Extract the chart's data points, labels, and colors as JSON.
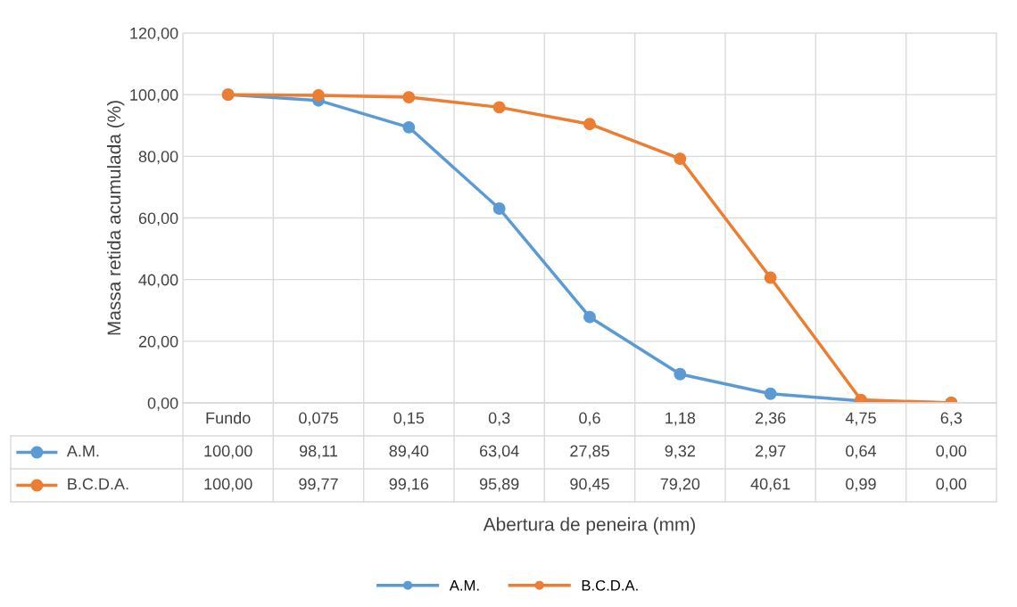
{
  "chart_data": {
    "type": "line",
    "xlabel": "Abertura de peneira (mm)",
    "ylabel": "Massa retida acumulada (%)",
    "categories": [
      "Fundo",
      "0,075",
      "0,15",
      "0,3",
      "0,6",
      "1,18",
      "2,36",
      "4,75",
      "6,3"
    ],
    "series": [
      {
        "name": "A.M.",
        "color": "#5b9bd5",
        "values": [
          100.0,
          98.11,
          89.4,
          63.04,
          27.85,
          9.32,
          2.97,
          0.64,
          0.0
        ],
        "value_labels": [
          "100,00",
          "98,11",
          "89,40",
          "63,04",
          "27,85",
          "9,32",
          "2,97",
          "0,64",
          "0,00"
        ]
      },
      {
        "name": "B.C.D.A.",
        "color": "#ed7d31",
        "values": [
          100.0,
          99.77,
          99.16,
          95.89,
          90.45,
          79.2,
          40.61,
          0.99,
          0.0
        ],
        "value_labels": [
          "100,00",
          "99,77",
          "99,16",
          "95,89",
          "90,45",
          "79,20",
          "40,61",
          "0,99",
          "0,00"
        ]
      }
    ],
    "ylim": [
      0,
      120
    ],
    "yticks": [
      {
        "value": 0,
        "label": "0,00"
      },
      {
        "value": 20,
        "label": "20,00"
      },
      {
        "value": 40,
        "label": "40,00"
      },
      {
        "value": 60,
        "label": "60,00"
      },
      {
        "value": 80,
        "label": "80,00"
      },
      {
        "value": 100,
        "label": "100,00"
      },
      {
        "value": 120,
        "label": "120,00"
      }
    ],
    "grid": true,
    "legend": "bottom",
    "marker": "circle",
    "line_style": "solid"
  }
}
